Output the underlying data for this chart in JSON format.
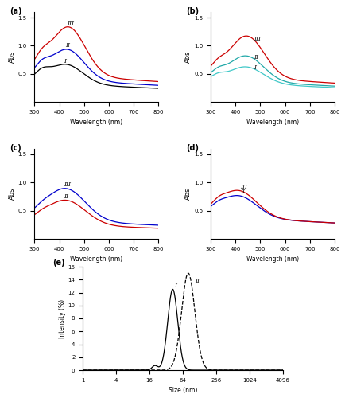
{
  "panel_labels": [
    "(a)",
    "(b)",
    "(c)",
    "(d)",
    "(e)"
  ],
  "uv_xlim": [
    300,
    800
  ],
  "uv_ylim": [
    0,
    1.6
  ],
  "uv_yticks": [
    0.5,
    1.0,
    1.5
  ],
  "uv_xlabel": "Wavelength (nm)",
  "uv_ylabel": "Abs",
  "dls_xlabel": "Size (nm)",
  "dls_ylabel": "Intensity (%)",
  "dls_ylim": [
    0,
    16
  ],
  "dls_yticks": [
    0,
    2,
    4,
    6,
    8,
    10,
    12,
    14,
    16
  ],
  "colors_a": [
    "#000000",
    "#0000cc",
    "#cc0000"
  ],
  "colors_b": [
    "#40c8c8",
    "#20a8a8",
    "#cc0000"
  ],
  "colors_c": [
    "#cc0000",
    "#0000cc"
  ],
  "colors_d": [
    "#0000cc",
    "#cc0000"
  ],
  "panel_a_labels": [
    "I",
    "II",
    "III"
  ],
  "panel_b_labels": [
    "I",
    "II",
    "III"
  ],
  "panel_c_labels": [
    "II",
    "III"
  ],
  "panel_d_labels": [
    "II",
    "III"
  ],
  "dls_labels": [
    "I",
    "II"
  ],
  "dls_xticks": [
    1,
    4,
    16,
    64,
    256,
    1024,
    4096
  ]
}
